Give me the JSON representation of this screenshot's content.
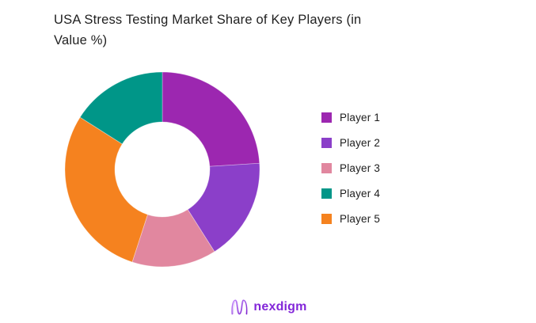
{
  "title": {
    "full": "USA Stress Testing Market Share of Key Players (in Value %)",
    "lines": [
      "USA Stress Testing Market Share of Key Players (in",
      "Value %)"
    ]
  },
  "chart_data": {
    "type": "pie",
    "subtype": "donut",
    "title": "USA Stress Testing Market Share of Key Players (in Value %)",
    "unit": "percent of value",
    "series": [
      {
        "name": "Player 1",
        "value": 24,
        "color": "#9C27B0"
      },
      {
        "name": "Player 2",
        "value": 17,
        "color": "#8B3FC9"
      },
      {
        "name": "Player 3",
        "value": 14,
        "color": "#E1879F"
      },
      {
        "name": "Player 4",
        "value": 16,
        "color": "#009688"
      },
      {
        "name": "Player 5",
        "value": 29,
        "color": "#F5821F"
      }
    ],
    "display_order_clockwise": [
      "Player 1",
      "Player 2",
      "Player 3",
      "Player 5",
      "Player 4"
    ],
    "start_angle_deg": 0,
    "inner_radius_ratio": 0.49,
    "legend_position": "right",
    "data_labels": "none",
    "background": "#ffffff"
  },
  "logo": {
    "text": "nexdigm",
    "color": "#8326d9",
    "icon": "nexdigm-wave-n-icon",
    "icon_gradient": [
      "#C084FC",
      "#7E22CE"
    ]
  }
}
